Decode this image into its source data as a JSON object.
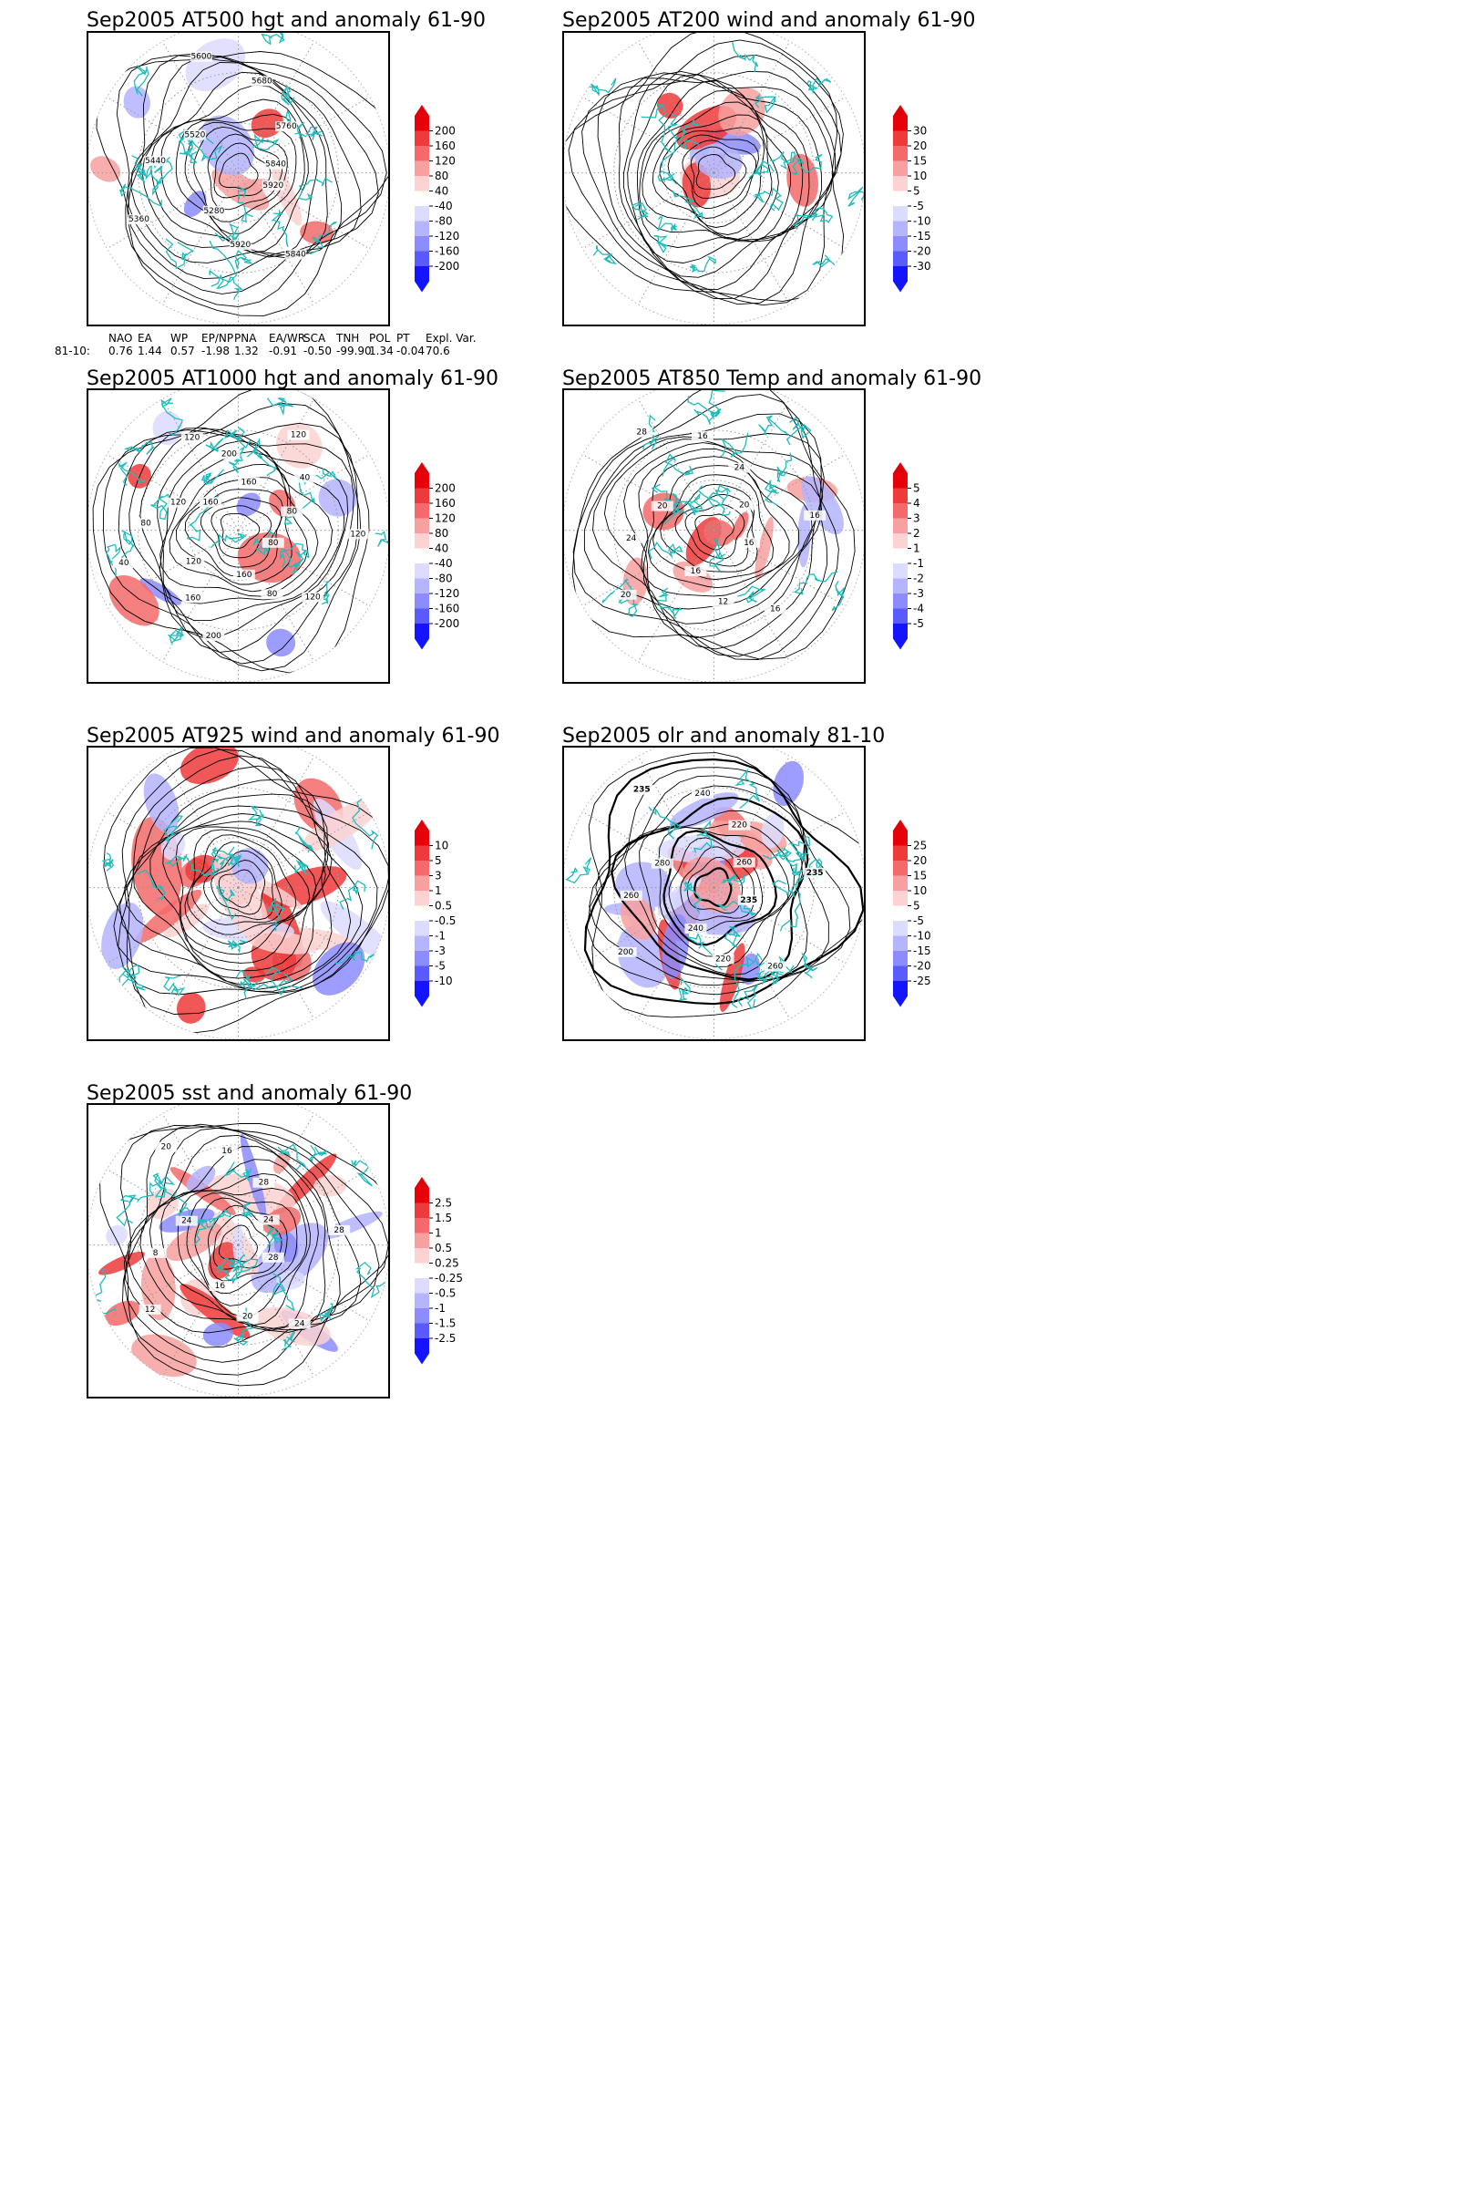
{
  "panels": [
    {
      "title": "Sep2005 AT500 hgt and anomaly 61-90",
      "colorbar": [
        "200",
        "160",
        "120",
        "80",
        "40",
        "-40",
        "-80",
        "-120",
        "-160",
        "-200"
      ],
      "contour_labels": [
        "5920",
        "5840",
        "5920",
        "5280",
        "5360",
        "5440",
        "5520",
        "5600",
        "5680",
        "5760",
        "5840"
      ]
    },
    {
      "title": "Sep2005 AT200 wind and anomaly 61-90",
      "colorbar": [
        "30",
        "20",
        "15",
        "10",
        "5",
        "-5",
        "-10",
        "-15",
        "-20",
        "-30"
      ],
      "contour_labels": []
    },
    {
      "title": "Sep2005 AT1000 hgt and anomaly 61-90",
      "colorbar": [
        "200",
        "160",
        "120",
        "80",
        "40",
        "-40",
        "-80",
        "-120",
        "-160",
        "-200"
      ],
      "contour_labels": [
        "80",
        "120",
        "80",
        "160",
        "200",
        "160",
        "120",
        "40",
        "80",
        "120",
        "160",
        "120",
        "200",
        "160",
        "120",
        "40",
        "80",
        "120"
      ]
    },
    {
      "title": "Sep2005 AT850 Temp and anomaly 61-90",
      "colorbar": [
        "5",
        "4",
        "3",
        "2",
        "1",
        "-1",
        "-2",
        "-3",
        "-4",
        "-5"
      ],
      "contour_labels": [
        "16",
        "16",
        "12",
        "16",
        "20",
        "24",
        "20",
        "28",
        "16",
        "24",
        "20",
        "16"
      ]
    },
    {
      "title": "Sep2005 AT925 wind and anomaly 61-90",
      "colorbar": [
        "10",
        "5",
        "3",
        "1",
        "0.5",
        "-0.5",
        "-1",
        "-3",
        "-5",
        "-10"
      ],
      "contour_labels": []
    },
    {
      "title": "Sep2005 olr and anomaly 81-10",
      "colorbar": [
        "25",
        "20",
        "15",
        "10",
        "5",
        "-5",
        "-10",
        "-15",
        "-20",
        "-25"
      ],
      "contour_labels": [
        "235",
        "260",
        "220",
        "240",
        "200",
        "260",
        "280",
        "235",
        "240",
        "220",
        "260",
        "235"
      ]
    },
    {
      "title": "Sep2005 sst and anomaly 61-90",
      "colorbar": [
        "2.5",
        "1.5",
        "1",
        "0.5",
        "0.25",
        "-0.25",
        "-0.5",
        "-1",
        "-1.5",
        "-2.5"
      ],
      "contour_labels": [
        "28",
        "24",
        "20",
        "16",
        "12",
        "8",
        "24",
        "20",
        "16",
        "28",
        "24",
        "28"
      ]
    }
  ],
  "teleconnection": {
    "headers": [
      "NAO",
      "EA",
      "WP",
      "EP/NP",
      "PNA",
      "EA/WR",
      "SCA",
      "TNH",
      "POL",
      "PT",
      "Expl. Var."
    ],
    "row_label": "81-10:",
    "values": [
      "0.76",
      "1.44",
      "0.57",
      "-1.98",
      "1.32",
      "-0.91",
      "-0.50",
      "-99.90",
      "1.34",
      "-0.04",
      "70.6"
    ]
  },
  "colors": {
    "coast": "#1ebcbc",
    "contour": "#000000",
    "pos": [
      "#e8000a",
      "#ee3a3a",
      "#f46a6a",
      "#f8a0a0",
      "#fcd2d2"
    ],
    "neg": [
      "#dcdcff",
      "#b4b4ff",
      "#8c8cff",
      "#5a5aff",
      "#1414ff"
    ]
  }
}
